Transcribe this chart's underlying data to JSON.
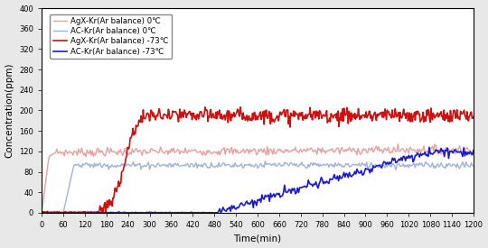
{
  "title": "",
  "xlabel": "Time(min)",
  "ylabel": "Concentration(ppm)",
  "xlim": [
    0,
    1200
  ],
  "ylim": [
    0,
    400
  ],
  "yticks": [
    0,
    40,
    80,
    120,
    160,
    200,
    240,
    280,
    320,
    360,
    400
  ],
  "xticks": [
    0,
    60,
    120,
    180,
    240,
    300,
    360,
    420,
    480,
    540,
    600,
    660,
    720,
    780,
    840,
    900,
    960,
    1020,
    1080,
    1140,
    1200
  ],
  "legend": [
    {
      "label": "AgX-Kr(Ar balance) 0℃",
      "color": "#e8a0a0",
      "lw": 1.0
    },
    {
      "label": "AC-Kr(Ar balance) 0℃",
      "color": "#a0b4d8",
      "lw": 1.0
    },
    {
      "label": "AgX-Kr(Ar balance) -73℃",
      "color": "#cc1111",
      "lw": 1.2
    },
    {
      "label": "AC-Kr(Ar balance) -73℃",
      "color": "#1a1acc",
      "lw": 1.2
    }
  ],
  "background_color": "#e8e8e8",
  "plot_bg_color": "#ffffff"
}
